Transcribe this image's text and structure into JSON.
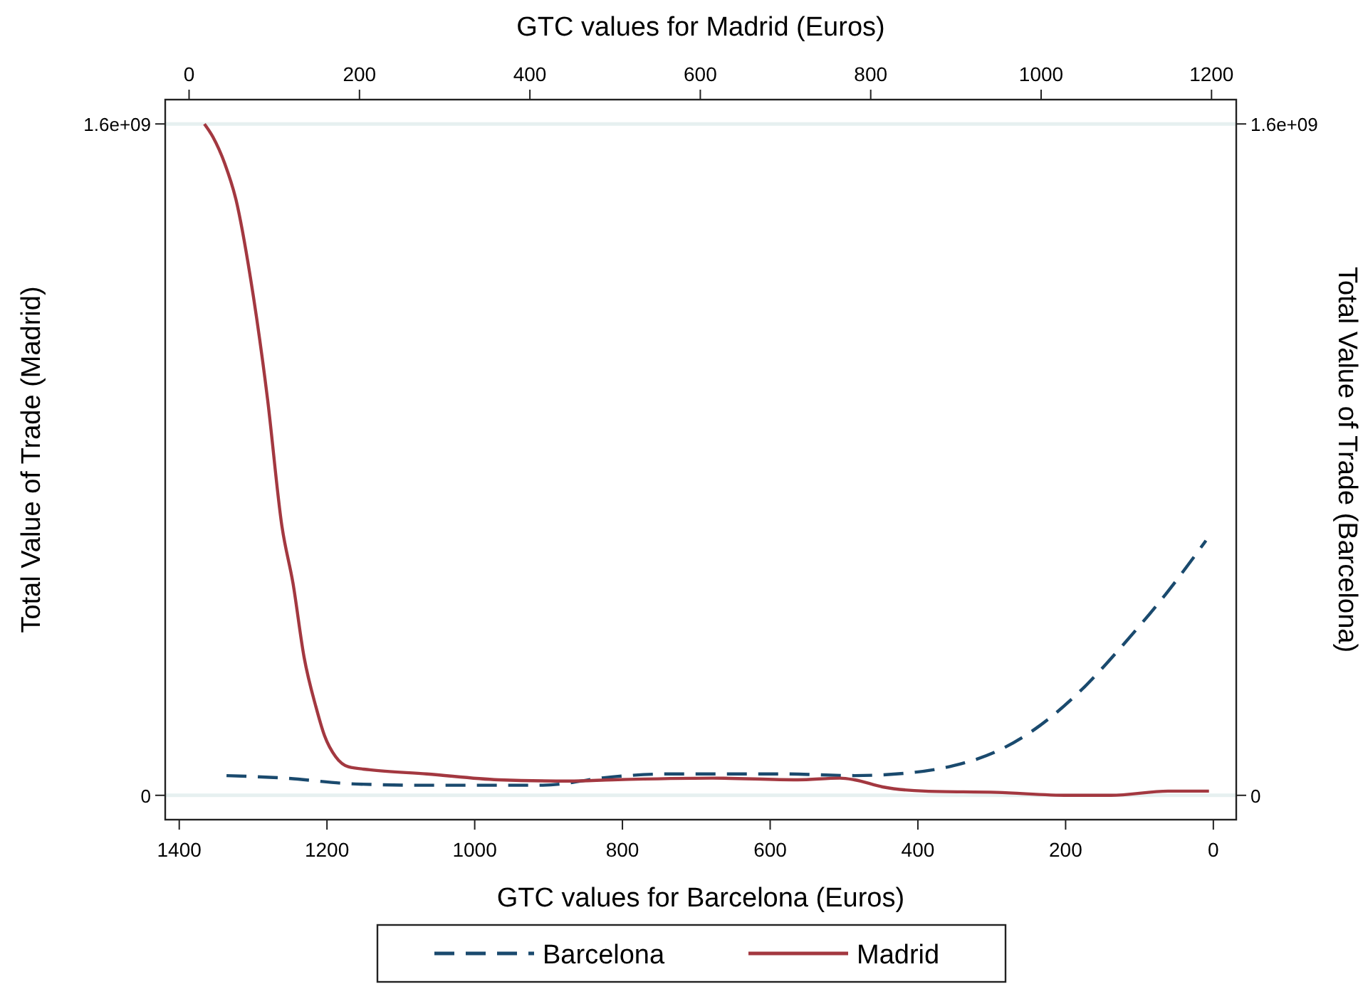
{
  "chart_data": {
    "type": "line",
    "xlabel": "GTC values for Barcelona (Euros)",
    "x2label": "GTC values for Madrid (Euros)",
    "ylabel": "Total Value of Trade (Madrid)",
    "y2label": "Total Value of Trade (Barcelona)",
    "xlim": [
      1419,
      -31
    ],
    "xticks": [
      1400,
      1200,
      1000,
      800,
      600,
      400,
      200,
      0
    ],
    "x2lim": [
      -28,
      1229
    ],
    "x2ticks": [
      0,
      200,
      400,
      600,
      800,
      1000,
      1200
    ],
    "ylim": [
      -58000000,
      1658000000
    ],
    "yticks": [
      0,
      {
        "value": 1600000000,
        "label": "1.6e+09"
      }
    ],
    "y2lim": [
      -58000000,
      1658000000
    ],
    "y2ticks": [
      0,
      {
        "value": 1600000000,
        "label": "1.6e+09"
      }
    ],
    "grid": "y",
    "legend": "bottom",
    "series": [
      {
        "name": "Barcelona",
        "color": "#1a4a6e",
        "line_style": "dashed",
        "axis": "y2",
        "x": [
          1336,
          1257,
          1161,
          1064,
          910,
          814,
          737,
          582,
          486,
          409,
          351,
          293,
          235,
          177,
          120,
          62,
          10
        ],
        "values": [
          47000000,
          41000000,
          27000000,
          24000000,
          24000000,
          44000000,
          51000000,
          51000000,
          47000000,
          54000000,
          71000000,
          105000000,
          166000000,
          254000000,
          363000000,
          485000000,
          607000000
        ]
      },
      {
        "name": "Madrid",
        "color": "#a33840",
        "line_style": "solid",
        "axis": "x2",
        "x": [
          18,
          28,
          42,
          55,
          72,
          92,
          109,
          122,
          135,
          149,
          159,
          172,
          187,
          212,
          279,
          363,
          446,
          497,
          614,
          714,
          764,
          781,
          814,
          864,
          948,
          1032,
          1082,
          1149,
          1197
        ],
        "values": [
          1600000000,
          1569000000,
          1505000000,
          1420000000,
          1234000000,
          946000000,
          641000000,
          505000000,
          329000000,
          210000000,
          142000000,
          92000000,
          68000000,
          61000000,
          51000000,
          37000000,
          34000000,
          37000000,
          41000000,
          37000000,
          41000000,
          37000000,
          20000000,
          10000000,
          7000000,
          0,
          0,
          10000000,
          10000000
        ]
      }
    ]
  }
}
